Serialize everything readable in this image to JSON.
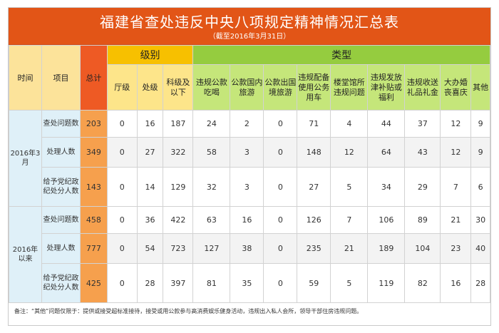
{
  "header": {
    "title": "福建省查处违反中央八项规定精神情况汇总表",
    "subtitle": "（截至2016年3月31日）"
  },
  "columns": {
    "time": "时间",
    "item": "项目",
    "total": "总计",
    "level_group": "级别",
    "type_group": "类型",
    "levels": [
      "厅级",
      "处级",
      "科级及以下"
    ],
    "types": [
      "违规公款吃喝",
      "公款国内旅游",
      "公款出国境旅游",
      "违规配备使用公务用车",
      "楼堂馆所违规问题",
      "违规发放津补贴或福利",
      "违规收送礼品礼金",
      "大办婚丧喜庆",
      "其他"
    ]
  },
  "groups": [
    {
      "time": "2016年3月",
      "rows": [
        {
          "item": "查处问题数",
          "values": [
            "203",
            "0",
            "16",
            "187",
            "24",
            "2",
            "0",
            "71",
            "4",
            "44",
            "37",
            "12",
            "9"
          ]
        },
        {
          "item": "处理人数",
          "values": [
            "349",
            "0",
            "27",
            "322",
            "58",
            "3",
            "0",
            "148",
            "12",
            "64",
            "43",
            "12",
            "9"
          ]
        },
        {
          "item": "给予党纪政纪处分人数",
          "values": [
            "143",
            "0",
            "14",
            "129",
            "32",
            "3",
            "0",
            "27",
            "5",
            "34",
            "29",
            "7",
            "6"
          ]
        }
      ]
    },
    {
      "time": "2016年以来",
      "rows": [
        {
          "item": "查处问题数",
          "values": [
            "458",
            "0",
            "36",
            "422",
            "63",
            "16",
            "0",
            "126",
            "7",
            "106",
            "89",
            "21",
            "30"
          ]
        },
        {
          "item": "处理人数",
          "values": [
            "777",
            "0",
            "54",
            "723",
            "127",
            "38",
            "0",
            "235",
            "21",
            "189",
            "104",
            "23",
            "40"
          ]
        },
        {
          "item": "给予党纪政纪处分人数",
          "values": [
            "425",
            "0",
            "28",
            "397",
            "81",
            "35",
            "0",
            "59",
            "5",
            "119",
            "82",
            "16",
            "28"
          ]
        }
      ]
    }
  ],
  "note": "备注：“其他”问题仅限于：提供或接受超标准接待，接受或用公款参与高消费娱乐健身活动，违规出入私人会所，领导干部住房违规问题。",
  "colors": {
    "header_bg": "#e25517",
    "level_group_bg": "#f7c000",
    "type_group_bg": "#95cc3f",
    "total_header_bg": "#ee5a24",
    "total_cell_bg": "#f6a04d"
  }
}
